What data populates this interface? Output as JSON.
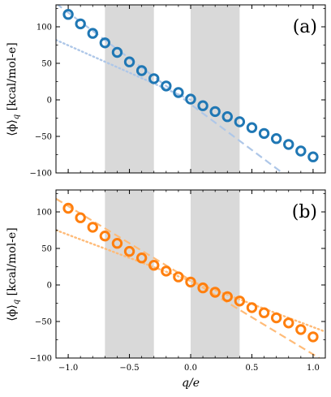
{
  "chart_data": [
    {
      "type": "scatter",
      "panel_label": "(a)",
      "ylabel": "⟨ϕ⟩_q [kcal/mol-e]",
      "xlabel": "",
      "xlim": [
        -1.1,
        1.1
      ],
      "ylim": [
        -100,
        130
      ],
      "xticks": [
        -1.0,
        -0.5,
        0.0,
        0.5,
        1.0
      ],
      "xtick_labels": [
        "",
        "",
        "",
        "",
        ""
      ],
      "yticks": [
        100,
        50,
        0,
        -50,
        -100
      ],
      "ytick_labels": [
        "100",
        "50",
        "0",
        "−50",
        "−100"
      ],
      "shaded_regions": [
        [
          -0.7,
          -0.3
        ],
        [
          0.0,
          0.4
        ]
      ],
      "shade_color": "#d9d9d9",
      "color": "#1f77b4",
      "fit_color": "#aec7e8",
      "points": {
        "x": [
          -1.0,
          -0.9,
          -0.8,
          -0.7,
          -0.6,
          -0.5,
          -0.4,
          -0.3,
          -0.2,
          -0.1,
          0.0,
          0.1,
          0.2,
          0.3,
          0.4,
          0.5,
          0.6,
          0.7,
          0.8,
          0.9,
          1.0
        ],
        "y": [
          117,
          104,
          91,
          78,
          65,
          52,
          40,
          29,
          19,
          10,
          1,
          -8,
          -16,
          -23,
          -30,
          -38,
          -46,
          -53,
          -61,
          -70,
          -78
        ]
      },
      "dashed_line": {
        "x0": -1.1,
        "y0": 132,
        "x1": 0.75,
        "y1": -100
      },
      "dotted_line": {
        "x0": -1.1,
        "y0": 82,
        "x1": 0.0,
        "y1": 0
      }
    },
    {
      "type": "scatter",
      "panel_label": "(b)",
      "ylabel": "⟨ϕ⟩_q [kcal/mol-e]",
      "xlabel": "q/e",
      "xlim": [
        -1.1,
        1.1
      ],
      "ylim": [
        -100,
        130
      ],
      "xticks": [
        -1.0,
        -0.5,
        0.0,
        0.5,
        1.0
      ],
      "xtick_labels": [
        "−1.0",
        "−0.5",
        "0.0",
        "0.5",
        "1.0"
      ],
      "yticks": [
        100,
        50,
        0,
        -50,
        -100
      ],
      "ytick_labels": [
        "100",
        "50",
        "0",
        "−50",
        "−100"
      ],
      "shaded_regions": [
        [
          -0.7,
          -0.3
        ],
        [
          0.0,
          0.4
        ]
      ],
      "shade_color": "#d9d9d9",
      "color": "#ff7f0e",
      "fit_color": "#ffbb78",
      "points": {
        "x": [
          -1.0,
          -0.9,
          -0.8,
          -0.7,
          -0.6,
          -0.5,
          -0.4,
          -0.3,
          -0.2,
          -0.1,
          0.0,
          0.1,
          0.2,
          0.3,
          0.4,
          0.5,
          0.6,
          0.7,
          0.8,
          0.9,
          1.0
        ],
        "y": [
          105,
          92,
          79,
          67,
          57,
          46,
          37,
          27,
          19,
          11,
          4,
          -4,
          -10,
          -16,
          -22,
          -31,
          -38,
          -45,
          -52,
          -61,
          -71
        ]
      },
      "dashed_line": {
        "x0": -1.1,
        "y0": 118,
        "x1": 1.05,
        "y1": -100
      },
      "dotted_line": {
        "x0": -1.1,
        "y0": 75,
        "x1": 1.1,
        "y1": -64
      }
    }
  ]
}
